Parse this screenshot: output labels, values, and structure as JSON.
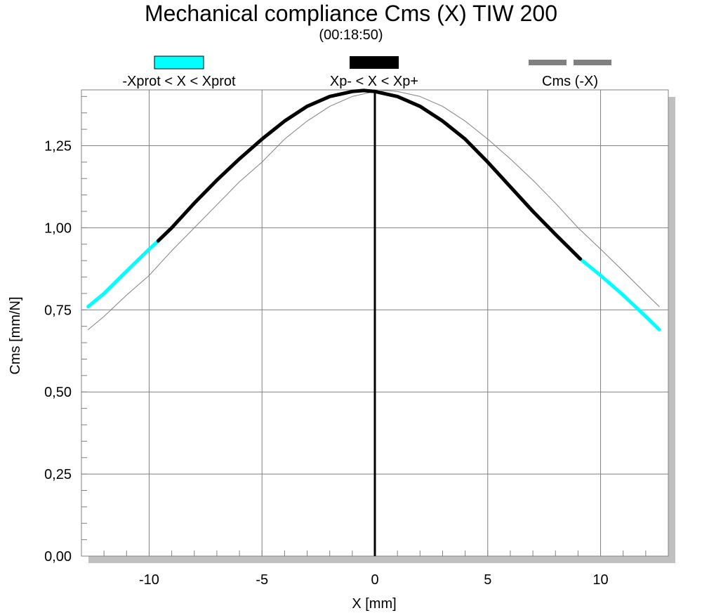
{
  "chart_data": {
    "type": "line",
    "title": "Mechanical compliance Cms (X) TIW 200",
    "subtitle": "(00:18:50)",
    "xlabel": "X [mm]",
    "ylabel": "Cms [mm/N]",
    "xlim": [
      -13,
      13
    ],
    "ylim": [
      0,
      1.42
    ],
    "xticks": [
      -10,
      -5,
      0,
      5,
      10
    ],
    "xtick_labels": [
      "-10",
      "-5",
      "0",
      "5",
      "10"
    ],
    "yticks": [
      0,
      0.25,
      0.5,
      0.75,
      1.0,
      1.25
    ],
    "ytick_labels": [
      "0,00",
      "0,25",
      "0,50",
      "0,75",
      "1,00",
      "1,25"
    ],
    "grid": true,
    "legend_position": "top",
    "vertical_marker_x": 0,
    "series": [
      {
        "name": "-Xprot < X < Xprot",
        "color": "#00ffff",
        "style": "thick",
        "x": [
          -12.7,
          -12,
          -11,
          -10,
          -9.6,
          9.1,
          10,
          11,
          12,
          12.6
        ],
        "y": [
          0.76,
          0.8,
          0.868,
          0.935,
          0.96,
          0.905,
          0.855,
          0.795,
          0.73,
          0.69
        ]
      },
      {
        "name": "Xp- < X < Xp+",
        "color": "#000000",
        "style": "thick",
        "x": [
          -9.6,
          -9,
          -8,
          -7,
          -6,
          -5,
          -4,
          -3,
          -2,
          -1,
          -0.5,
          0,
          1,
          2,
          3,
          4,
          5,
          6,
          7,
          8,
          9.1
        ],
        "y": [
          0.96,
          1.0,
          1.075,
          1.145,
          1.21,
          1.27,
          1.325,
          1.37,
          1.4,
          1.415,
          1.418,
          1.415,
          1.4,
          1.37,
          1.325,
          1.27,
          1.2,
          1.125,
          1.05,
          0.98,
          0.905
        ]
      },
      {
        "name": "Cms (-X)",
        "color": "#808080",
        "style": "thin",
        "x": [
          -12.7,
          -12,
          -11,
          -10,
          -9,
          -8,
          -7,
          -6,
          -5,
          -4,
          -3,
          -2,
          -1,
          0,
          0.5,
          1,
          2,
          3,
          4,
          5,
          6,
          7,
          8,
          9,
          10,
          11,
          12,
          12.6
        ],
        "y": [
          0.69,
          0.73,
          0.795,
          0.855,
          0.93,
          1.0,
          1.07,
          1.14,
          1.2,
          1.27,
          1.325,
          1.37,
          1.4,
          1.415,
          1.418,
          1.415,
          1.4,
          1.37,
          1.325,
          1.27,
          1.21,
          1.145,
          1.075,
          1.0,
          0.935,
          0.868,
          0.8,
          0.76
        ]
      }
    ]
  }
}
